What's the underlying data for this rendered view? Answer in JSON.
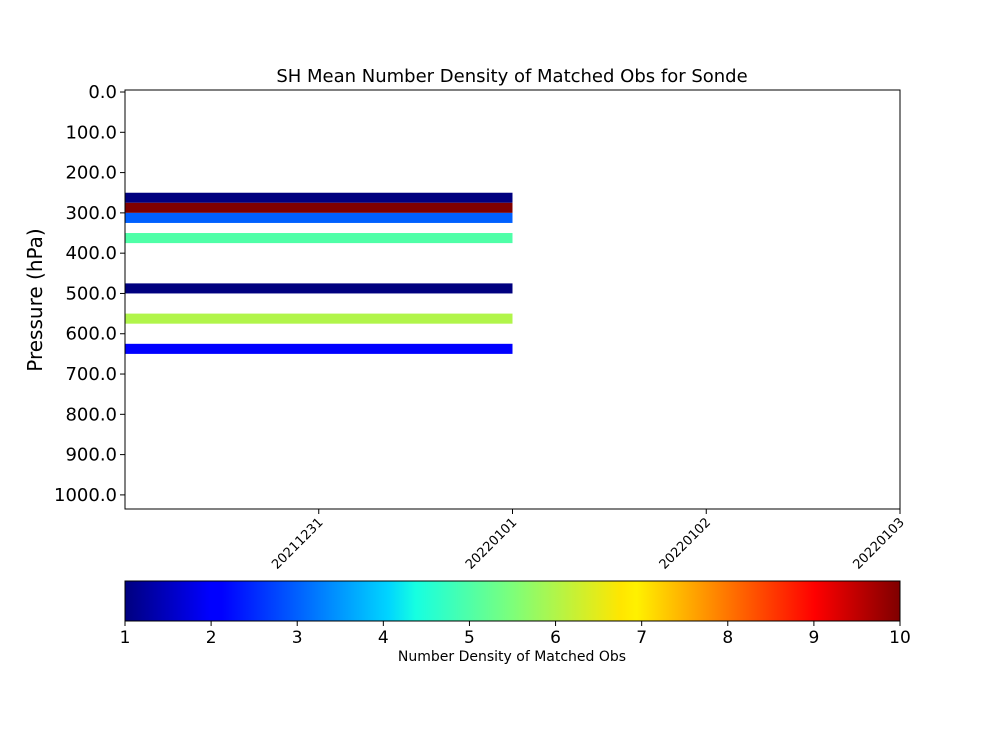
{
  "chart_data": {
    "type": "heatmap",
    "title": "SH Mean Number Density of Matched Obs for Sonde",
    "ylabel": "Pressure (hPa)",
    "xlabel": "",
    "x_ticks": [
      "20211231",
      "20220101",
      "20220102",
      "20220103"
    ],
    "x_range": [
      "20211230",
      "20220103"
    ],
    "y_ticks": [
      "0.0",
      "100.0",
      "200.0",
      "300.0",
      "400.0",
      "500.0",
      "600.0",
      "700.0",
      "800.0",
      "900.0",
      "1000.0"
    ],
    "y_range": [
      1035,
      -5
    ],
    "y_inverted": true,
    "grid": false,
    "colormap": "jet",
    "color_range": [
      1,
      10
    ],
    "colorbar_label": "Number Density of Matched Obs",
    "colorbar_ticks": [
      "1",
      "2",
      "3",
      "4",
      "5",
      "6",
      "7",
      "8",
      "9",
      "10"
    ],
    "colorbar_placement": "bottom",
    "cells": [
      {
        "x_start": "20211230",
        "x_end": "20220101",
        "p_top": 250,
        "p_bottom": 275,
        "value": 1.0
      },
      {
        "x_start": "20211230",
        "x_end": "20220101",
        "p_top": 275,
        "p_bottom": 300,
        "value": 10.0
      },
      {
        "x_start": "20211230",
        "x_end": "20220101",
        "p_top": 300,
        "p_bottom": 325,
        "value": 3.0
      },
      {
        "x_start": "20211230",
        "x_end": "20220101",
        "p_top": 350,
        "p_bottom": 375,
        "value": 5.0
      },
      {
        "x_start": "20211230",
        "x_end": "20220101",
        "p_top": 475,
        "p_bottom": 500,
        "value": 1.0
      },
      {
        "x_start": "20211230",
        "x_end": "20220101",
        "p_top": 550,
        "p_bottom": 575,
        "value": 6.0
      },
      {
        "x_start": "20211230",
        "x_end": "20220101",
        "p_top": 625,
        "p_bottom": 650,
        "value": 2.0
      }
    ]
  }
}
